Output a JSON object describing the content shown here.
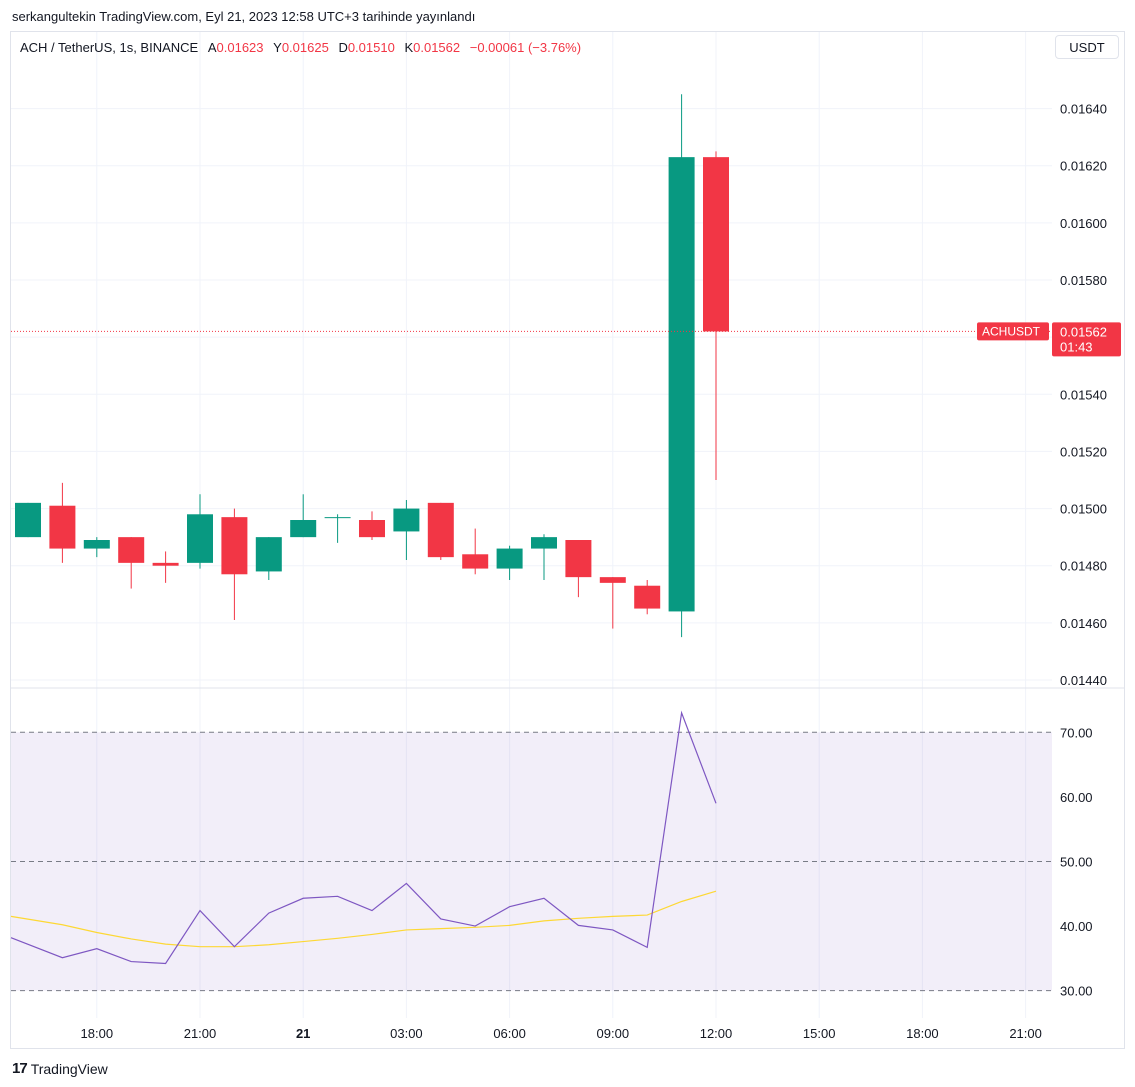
{
  "header": {
    "published_text": "serkangultekin TradingView.com, Eyl 21, 2023 12:58 UTC+3 tarihinde yayınlandı"
  },
  "legend": {
    "symbol": "ACH / TetherUS, 1s, BINANCE",
    "open_label": "A",
    "open_value": "0.01623",
    "high_label": "Y",
    "high_value": "0.01625",
    "low_label": "D",
    "low_value": "0.01510",
    "close_label": "K",
    "close_value": "0.01562",
    "change": "−0.00061 (−3.76%)"
  },
  "currency_button": "USDT",
  "price_tag": {
    "ticker": "ACHUSDT",
    "price": "0.01562",
    "countdown": "01:43"
  },
  "footer": {
    "brand": "TradingView",
    "logo_text": "17"
  },
  "colors": {
    "up": "#089981",
    "down": "#f23645",
    "rsi": "#7e57c2",
    "rsi_ma": "#fdd835",
    "rsi_band": "#7e57c2"
  },
  "chart_data": [
    {
      "type": "candlestick",
      "title": "ACH / TetherUS, 1s, BINANCE",
      "ylim": [
        0.0144,
        0.0165
      ],
      "yticks": [
        "0.01440",
        "0.01460",
        "0.01480",
        "0.01500",
        "0.01520",
        "0.01540",
        "0.01560",
        "0.01580",
        "0.01600",
        "0.01620",
        "0.01640"
      ],
      "xticks": [
        "18:00",
        "21:00",
        "21",
        "03:00",
        "06:00",
        "09:00",
        "12:00",
        "15:00",
        "18:00",
        "21:00"
      ],
      "candles": [
        {
          "t": "16:00",
          "o": 0.0149,
          "h": 0.01502,
          "l": 0.0149,
          "c": 0.01502
        },
        {
          "t": "17:00",
          "o": 0.01501,
          "h": 0.01509,
          "l": 0.01481,
          "c": 0.01486
        },
        {
          "t": "18:00",
          "o": 0.01486,
          "h": 0.0149,
          "l": 0.01483,
          "c": 0.01489
        },
        {
          "t": "19:00",
          "o": 0.0149,
          "h": 0.0149,
          "l": 0.01472,
          "c": 0.01481
        },
        {
          "t": "20:00",
          "o": 0.01481,
          "h": 0.01485,
          "l": 0.01474,
          "c": 0.0148
        },
        {
          "t": "21:00",
          "o": 0.01481,
          "h": 0.01505,
          "l": 0.01479,
          "c": 0.01498
        },
        {
          "t": "22:00",
          "o": 0.01497,
          "h": 0.015,
          "l": 0.01461,
          "c": 0.01477
        },
        {
          "t": "23:00",
          "o": 0.01478,
          "h": 0.0149,
          "l": 0.01475,
          "c": 0.0149
        },
        {
          "t": "00:00",
          "o": 0.0149,
          "h": 0.01505,
          "l": 0.0149,
          "c": 0.01496
        },
        {
          "t": "01:00",
          "o": 0.01497,
          "h": 0.01498,
          "l": 0.01488,
          "c": 0.01497
        },
        {
          "t": "02:00",
          "o": 0.01496,
          "h": 0.01499,
          "l": 0.01489,
          "c": 0.0149
        },
        {
          "t": "03:00",
          "o": 0.01492,
          "h": 0.01503,
          "l": 0.01482,
          "c": 0.015
        },
        {
          "t": "04:00",
          "o": 0.01502,
          "h": 0.01502,
          "l": 0.01482,
          "c": 0.01483
        },
        {
          "t": "05:00",
          "o": 0.01484,
          "h": 0.01493,
          "l": 0.01477,
          "c": 0.01479
        },
        {
          "t": "06:00",
          "o": 0.01479,
          "h": 0.01487,
          "l": 0.01475,
          "c": 0.01486
        },
        {
          "t": "07:00",
          "o": 0.01486,
          "h": 0.01491,
          "l": 0.01475,
          "c": 0.0149
        },
        {
          "t": "08:00",
          "o": 0.01489,
          "h": 0.01489,
          "l": 0.01469,
          "c": 0.01476
        },
        {
          "t": "09:00",
          "o": 0.01476,
          "h": 0.01476,
          "l": 0.01458,
          "c": 0.01474
        },
        {
          "t": "10:00",
          "o": 0.01473,
          "h": 0.01475,
          "l": 0.01463,
          "c": 0.01465
        },
        {
          "t": "11:00",
          "o": 0.01464,
          "h": 0.01645,
          "l": 0.01455,
          "c": 0.01623
        },
        {
          "t": "12:00",
          "o": 0.01623,
          "h": 0.01625,
          "l": 0.0151,
          "c": 0.01562
        }
      ],
      "last_price": 0.01562
    },
    {
      "type": "line",
      "ylim": [
        27,
        75
      ],
      "yticks": [
        "30.00",
        "40.00",
        "50.00",
        "60.00",
        "70.00"
      ],
      "bands": [
        30,
        50,
        70
      ],
      "series": [
        {
          "values": [
            38.2,
            35.1,
            36.5,
            34.5,
            34.2,
            42.4,
            36.8,
            42.0,
            44.3,
            44.6,
            42.4,
            46.6,
            41.1,
            40.0,
            43.0,
            44.3,
            40.1,
            39.4,
            36.7,
            73.0,
            59.0
          ]
        },
        {
          "values": [
            41.5,
            40.2,
            39.0,
            38.0,
            37.2,
            36.8,
            36.8,
            37.1,
            37.6,
            38.1,
            38.7,
            39.4,
            39.6,
            39.8,
            40.1,
            40.8,
            41.2,
            41.5,
            41.7,
            43.8,
            45.4
          ]
        }
      ]
    }
  ]
}
